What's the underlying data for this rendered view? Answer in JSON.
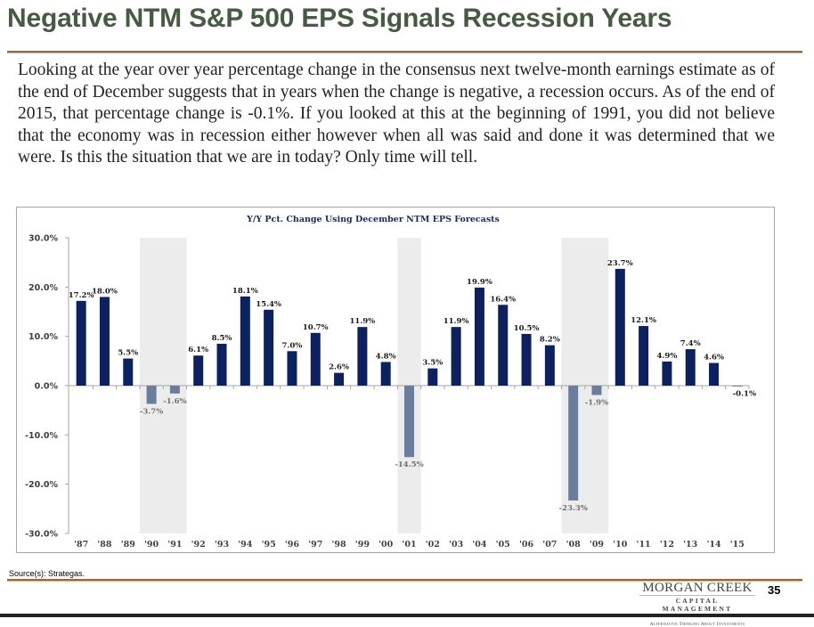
{
  "slide": {
    "title": "Negative NTM S&P 500 EPS Signals Recession Years",
    "body": "Looking at the year over year percentage change in the consensus next twelve-month earnings estimate as of the end of December suggests that in years when the change is negative, a recession occurs. As of the end of 2015, that percentage change is -0.1%. If you looked at this at the beginning of 1991, you did not believe that the economy was in recession either however when all was said and done it was determined that we were. Is this the situation that we are in today? Only time will tell.",
    "source": "Source(s):  Strategas.",
    "page_number": "35",
    "logo": {
      "line1": "MORGAN CREEK",
      "line2": "CAPITAL MANAGEMENT",
      "tagline": "Alternative Thinking About Investments"
    },
    "colors": {
      "title": "#475a44",
      "rule": "#a0643a",
      "positive_bar": "#0d2060",
      "negative_bar": "#6b7d9c",
      "recession_shade": "#ececec"
    }
  },
  "chart_data": {
    "type": "bar",
    "title": "Y/Y Pct. Change Using December NTM EPS Forecasts",
    "xlabel": "",
    "ylabel": "",
    "ylim": [
      -30,
      30
    ],
    "yticks": [
      30,
      20,
      10,
      0,
      -10,
      -20,
      -30
    ],
    "ytick_labels": [
      "30.0%",
      "20.0%",
      "10.0%",
      "0.0%",
      "-10.0%",
      "-20.0%",
      "-30.0%"
    ],
    "grid": false,
    "categories": [
      "'87",
      "'88",
      "'89",
      "'90",
      "'91",
      "'92",
      "'93",
      "'94",
      "'95",
      "'96",
      "'97",
      "'98",
      "'99",
      "'00",
      "'01",
      "'02",
      "'03",
      "'04",
      "'05",
      "'06",
      "'07",
      "'08",
      "'09",
      "'10",
      "'11",
      "'12",
      "'13",
      "'14",
      "'15"
    ],
    "values": [
      17.2,
      18.0,
      5.5,
      -3.7,
      -1.6,
      6.1,
      8.5,
      18.1,
      15.4,
      7.0,
      10.7,
      2.6,
      11.9,
      4.8,
      -14.5,
      3.5,
      11.9,
      19.9,
      16.4,
      10.5,
      8.2,
      -23.3,
      -1.9,
      23.7,
      12.1,
      4.9,
      7.4,
      4.6,
      -0.1
    ],
    "data_labels": [
      "17.2%",
      "18.0%",
      "5.5%",
      "-3.7%",
      "-1.6%",
      "6.1%",
      "8.5%",
      "18.1%",
      "15.4%",
      "7.0%",
      "10.7%",
      "2.6%",
      "11.9%",
      "4.8%",
      "-14.5%",
      "3.5%",
      "11.9%",
      "19.9%",
      "16.4%",
      "10.5%",
      "8.2%",
      "-23.3%",
      "-1.9%",
      "23.7%",
      "12.1%",
      "4.9%",
      "7.4%",
      "4.6%",
      "-0.1%"
    ],
    "recession_shading": [
      [
        "'90",
        "'91"
      ],
      [
        "'01",
        "'01"
      ],
      [
        "'08",
        "'09"
      ]
    ],
    "legend": "none"
  }
}
